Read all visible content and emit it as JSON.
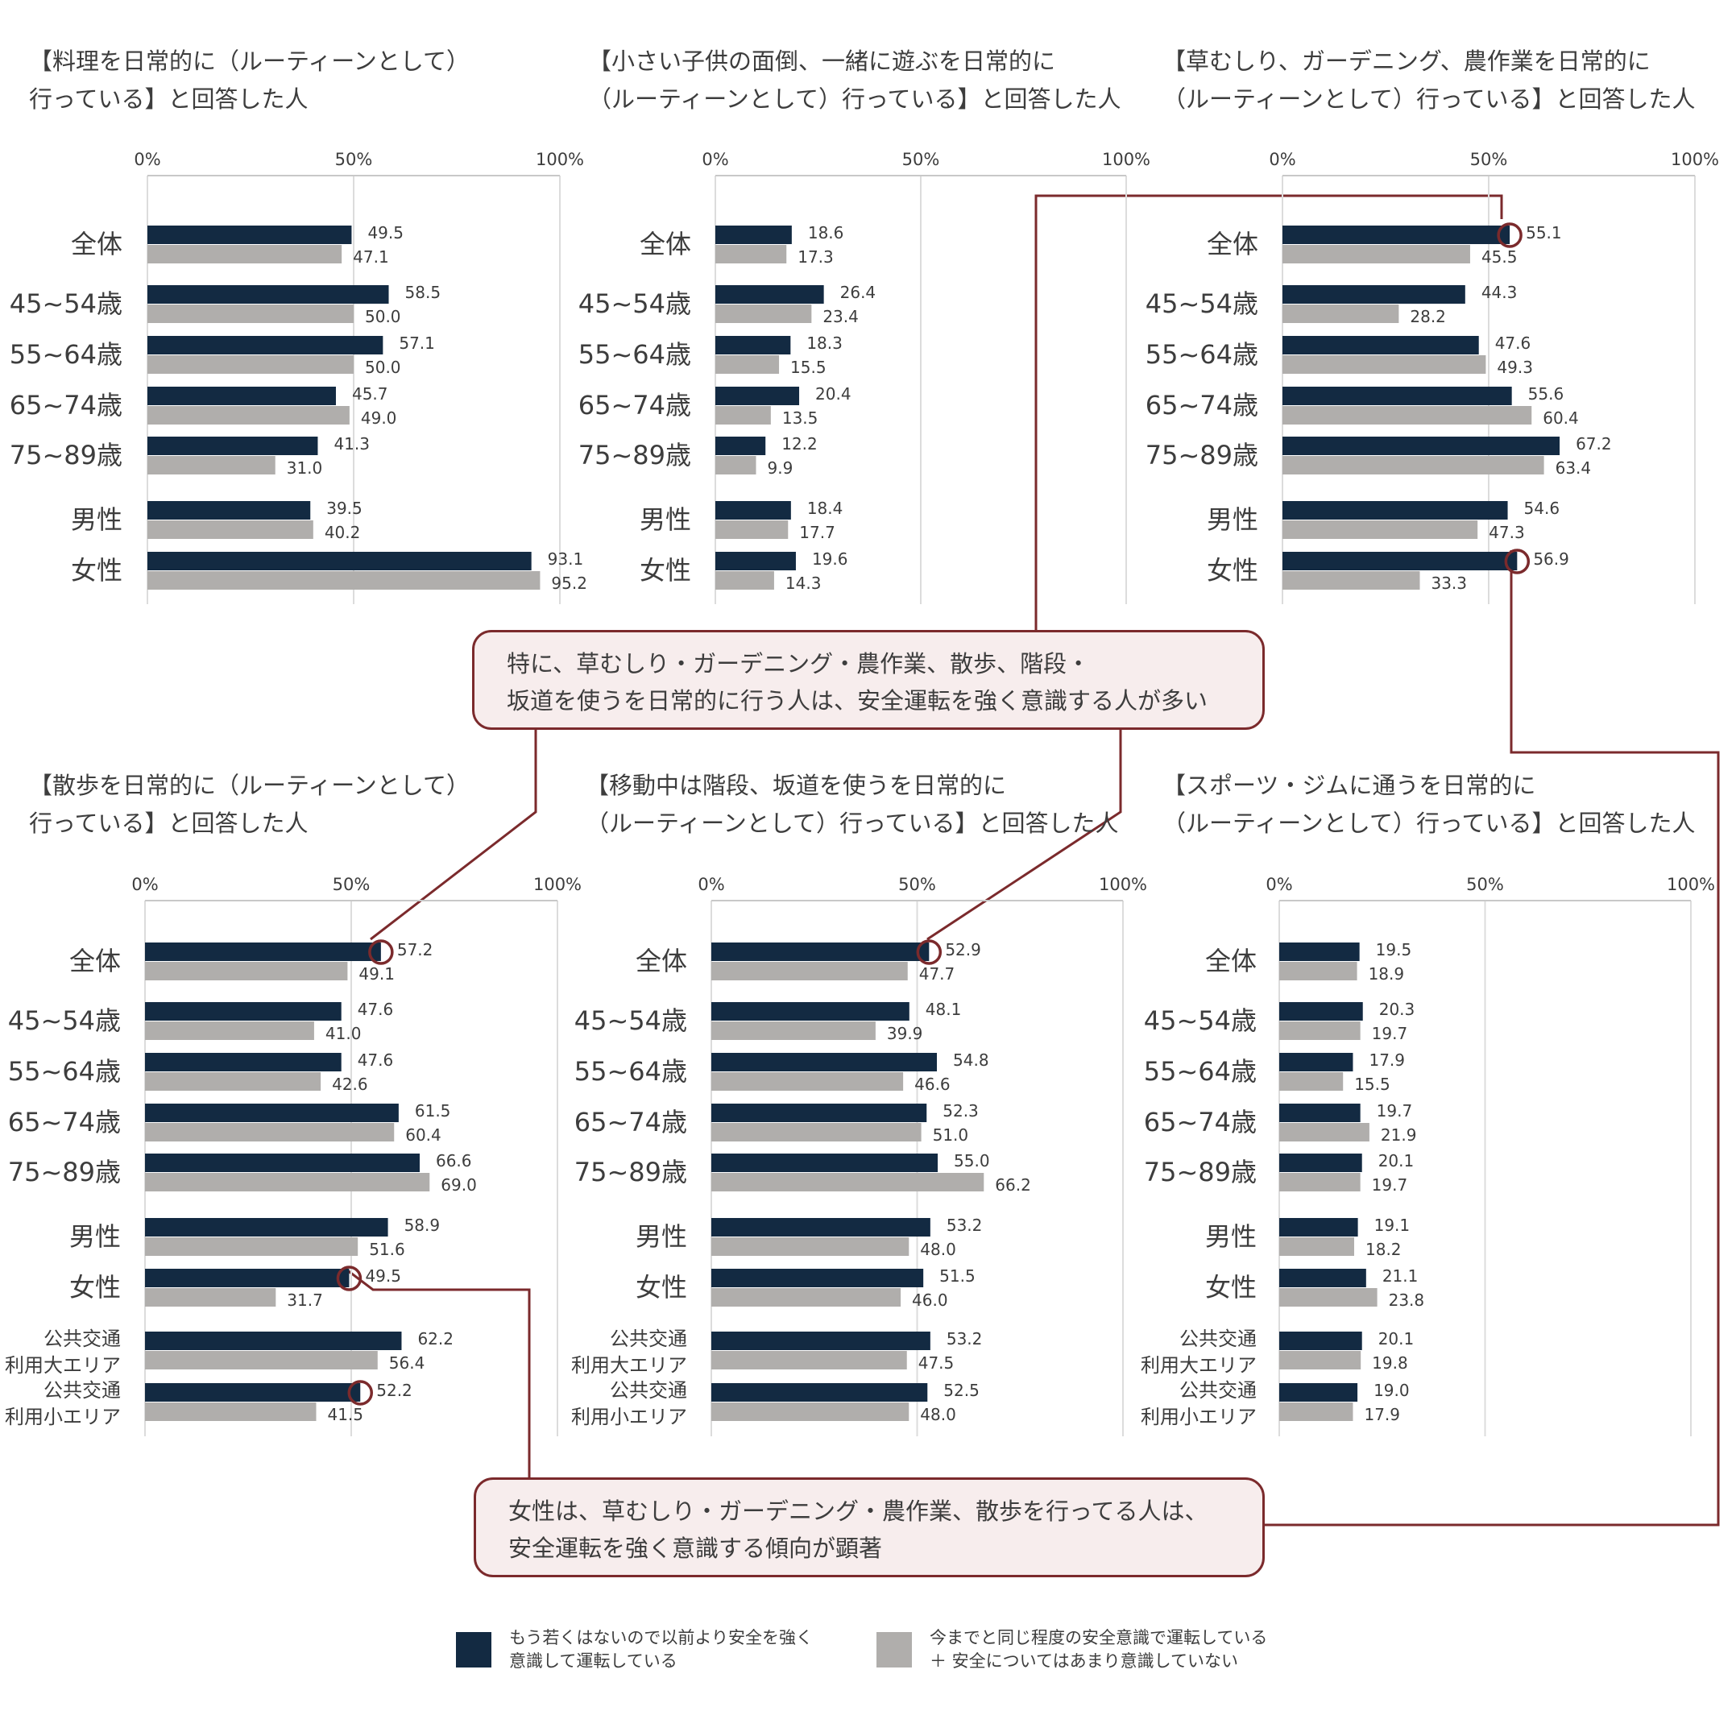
{
  "colors": {
    "dark": "#132a42",
    "gray": "#b0aeac",
    "accent": "#7b2a2c",
    "callout_bg": "#f7eded",
    "text": "#3d3d3d"
  },
  "axis_ticks": [
    "0%",
    "50%",
    "100%"
  ],
  "chart_data": [
    {
      "type": "bar",
      "orientation": "horizontal",
      "title": "【料理を日常的に（ルーティーンとして）\n行っている】と回答した人",
      "categories": [
        "全体",
        "45~54歳",
        "55~64歳",
        "65~74歳",
        "75~89歳",
        "男性",
        "女性"
      ],
      "series": [
        {
          "name": "もう若くはないので以前より安全を強く意識して運転している",
          "values": [
            49.5,
            58.5,
            57.1,
            45.7,
            41.3,
            39.5,
            93.1
          ]
        },
        {
          "name": "今までと同じ程度の安全意識で運転している ＋ 安全についてはあまり意識していない",
          "values": [
            47.1,
            50.0,
            50.0,
            49.0,
            31.0,
            40.2,
            95.2
          ]
        }
      ],
      "xlim": [
        0,
        100
      ],
      "grid": true,
      "highlight": []
    },
    {
      "type": "bar",
      "orientation": "horizontal",
      "title": "【小さい子供の面倒、一緒に遊ぶを日常的に\n（ルーティーンとして）行っている】と回答した人",
      "categories": [
        "全体",
        "45~54歳",
        "55~64歳",
        "65~74歳",
        "75~89歳",
        "男性",
        "女性"
      ],
      "series": [
        {
          "name": "もう若くはないので以前より安全を強く意識して運転している",
          "values": [
            18.6,
            26.4,
            18.3,
            20.4,
            12.2,
            18.4,
            19.6
          ]
        },
        {
          "name": "今までと同じ程度の安全意識で運転している ＋ 安全についてはあまり意識していない",
          "values": [
            17.3,
            23.4,
            15.5,
            13.5,
            9.9,
            17.7,
            14.3
          ]
        }
      ],
      "xlim": [
        0,
        100
      ],
      "grid": true,
      "highlight": []
    },
    {
      "type": "bar",
      "orientation": "horizontal",
      "title": "【草むしり、ガーデニング、農作業を日常的に\n（ルーティーンとして）行っている】と回答した人",
      "categories": [
        "全体",
        "45~54歳",
        "55~64歳",
        "65~74歳",
        "75~89歳",
        "男性",
        "女性"
      ],
      "series": [
        {
          "name": "もう若くはないので以前より安全を強く意識して運転している",
          "values": [
            55.1,
            44.3,
            47.6,
            55.6,
            67.2,
            54.6,
            56.9
          ]
        },
        {
          "name": "今までと同じ程度の安全意識で運転している ＋ 安全についてはあまり意識していない",
          "values": [
            45.5,
            28.2,
            49.3,
            60.4,
            63.4,
            47.3,
            33.3
          ]
        }
      ],
      "xlim": [
        0,
        100
      ],
      "grid": true,
      "highlight": [
        "全体",
        "女性"
      ]
    },
    {
      "type": "bar",
      "orientation": "horizontal",
      "title": "【散歩を日常的に（ルーティーンとして）\n行っている】と回答した人",
      "categories": [
        "全体",
        "45~54歳",
        "55~64歳",
        "65~74歳",
        "75~89歳",
        "男性",
        "女性",
        "公共交通\n利用大エリア",
        "公共交通\n利用小エリア"
      ],
      "series": [
        {
          "name": "もう若くはないので以前より安全を強く意識して運転している",
          "values": [
            57.2,
            47.6,
            47.6,
            61.5,
            66.6,
            58.9,
            49.5,
            62.2,
            52.2
          ]
        },
        {
          "name": "今までと同じ程度の安全意識で運転している ＋ 安全についてはあまり意識していない",
          "values": [
            49.1,
            41.0,
            42.6,
            60.4,
            69.0,
            51.6,
            31.7,
            56.4,
            41.5
          ]
        }
      ],
      "xlim": [
        0,
        100
      ],
      "grid": true,
      "highlight": [
        "全体",
        "女性",
        "公共交通\n利用小エリア"
      ]
    },
    {
      "type": "bar",
      "orientation": "horizontal",
      "title": "【移動中は階段、坂道を使うを日常的に\n（ルーティーンとして）行っている】と回答した人",
      "categories": [
        "全体",
        "45~54歳",
        "55~64歳",
        "65~74歳",
        "75~89歳",
        "男性",
        "女性",
        "公共交通\n利用大エリア",
        "公共交通\n利用小エリア"
      ],
      "series": [
        {
          "name": "もう若くはないので以前より安全を強く意識して運転している",
          "values": [
            52.9,
            48.1,
            54.8,
            52.3,
            55.0,
            53.2,
            51.5,
            53.2,
            52.5
          ]
        },
        {
          "name": "今までと同じ程度の安全意識で運転している ＋ 安全についてはあまり意識していない",
          "values": [
            47.7,
            39.9,
            46.6,
            51.0,
            66.2,
            48.0,
            46.0,
            47.5,
            48.0
          ]
        }
      ],
      "xlim": [
        0,
        100
      ],
      "grid": true,
      "highlight": [
        "全体"
      ]
    },
    {
      "type": "bar",
      "orientation": "horizontal",
      "title": "【スポーツ・ジムに通うを日常的に\n（ルーティーンとして）行っている】と回答した人",
      "categories": [
        "全体",
        "45~54歳",
        "55~64歳",
        "65~74歳",
        "75~89歳",
        "男性",
        "女性",
        "公共交通\n利用大エリア",
        "公共交通\n利用小エリア"
      ],
      "series": [
        {
          "name": "もう若くはないので以前より安全を強く意識して運転している",
          "values": [
            19.5,
            20.3,
            17.9,
            19.7,
            20.1,
            19.1,
            21.1,
            20.1,
            19.0
          ]
        },
        {
          "name": "今までと同じ程度の安全意識で運転している ＋ 安全についてはあまり意識していない",
          "values": [
            18.9,
            19.7,
            15.5,
            21.9,
            19.7,
            18.2,
            23.8,
            19.8,
            17.9
          ]
        }
      ],
      "xlim": [
        0,
        100
      ],
      "grid": true,
      "highlight": []
    }
  ],
  "callouts": [
    {
      "text": "特に、草むしり・ガーデニング・農作業、散歩、階段・\n坂道を使うを日常的に行う人は、安全運転を強く意識する人が多い"
    },
    {
      "text": "女性は、草むしり・ガーデニング・農作業、散歩を行ってる人は、\n安全運転を強く意識する傾向が顕著"
    }
  ],
  "legend": [
    {
      "label": "もう若くはないので以前より安全を強く\n意識して運転している"
    },
    {
      "label": "今までと同じ程度の安全意識で運転している\n＋ 安全についてはあまり意識していない"
    }
  ]
}
